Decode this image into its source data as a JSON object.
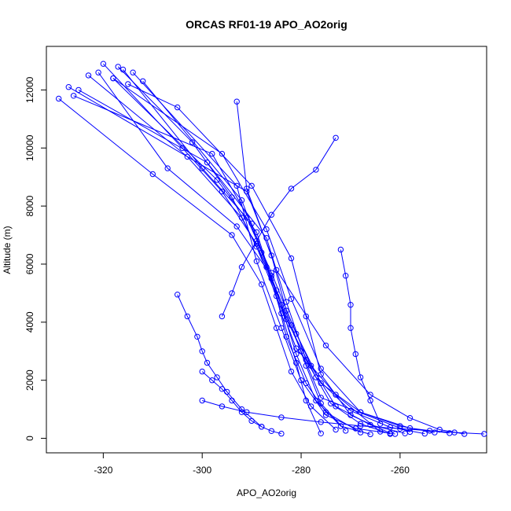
{
  "chart_data": {
    "type": "scatter",
    "title": "ORCAS RF01-19 APO_AO2orig",
    "xlabel": "APO_AO2orig",
    "ylabel": "Altitude (m)",
    "xlim": [
      -331.5,
      -242.5
    ],
    "ylim": [
      -500,
      13500
    ],
    "xticks": [
      -320,
      -300,
      -280,
      -260
    ],
    "yticks": [
      0,
      2000,
      4000,
      6000,
      8000,
      10000,
      12000
    ],
    "xtick_labels": [
      "-320",
      "-300",
      "-280",
      "-260"
    ],
    "ytick_labels": [
      "0",
      "2000",
      "4000",
      "6000",
      "8000",
      "10000",
      "12000"
    ],
    "grid": false,
    "legend": "none",
    "marker": "open-circle",
    "connected": true,
    "color": "#0000ff",
    "series": [
      {
        "profile": 1,
        "x": [
          -247,
          -252,
          -258,
          -266,
          -275,
          -285,
          -291,
          -293
        ],
        "y": [
          150,
          300,
          700,
          1500,
          3200,
          5800,
          8600,
          11600
        ]
      },
      {
        "profile": 2,
        "x": [
          -315,
          -305,
          -290,
          -282,
          -279,
          -276,
          -270,
          -262
        ],
        "y": [
          12200,
          11400,
          8700,
          6200,
          4200,
          2200,
          800,
          180
        ]
      },
      {
        "profile": 3,
        "x": [
          -250,
          -258,
          -268,
          -276,
          -282,
          -287,
          -296,
          -318
        ],
        "y": [
          180,
          350,
          900,
          2400,
          4800,
          7200,
          9800,
          12400
        ]
      },
      {
        "profile": 4,
        "x": [
          -321,
          -307,
          -293,
          -286,
          -283,
          -279,
          -275,
          -268
        ],
        "y": [
          12600,
          9300,
          7300,
          5600,
          3500,
          1900,
          900,
          200
        ]
      },
      {
        "profile": 5,
        "x": [
          -262,
          -268,
          -274,
          -279,
          -283,
          -287,
          -299,
          -325
        ],
        "y": [
          150,
          500,
          1200,
          2700,
          4700,
          6900,
          9500,
          12000
        ]
      },
      {
        "profile": 6,
        "x": [
          -329,
          -310,
          -294,
          -288,
          -285,
          -282,
          -278,
          -273
        ],
        "y": [
          11700,
          9100,
          7000,
          5300,
          3800,
          2300,
          1100,
          300
        ]
      },
      {
        "profile": 7,
        "x": [
          -255,
          -262,
          -270,
          -277,
          -283,
          -288,
          -292,
          -312
        ],
        "y": [
          160,
          380,
          950,
          2100,
          4100,
          6400,
          8200,
          12300
        ]
      },
      {
        "profile": 8,
        "x": [
          -320,
          -304,
          -296,
          -289,
          -284,
          -280,
          -276,
          -258
        ],
        "y": [
          12900,
          10000,
          8500,
          6700,
          4600,
          3000,
          1400,
          220
        ]
      },
      {
        "profile": 9,
        "x": [
          -266,
          -272,
          -277,
          -281,
          -285,
          -290,
          -298,
          -326
        ],
        "y": [
          140,
          420,
          1300,
          2900,
          5100,
          7400,
          9800,
          11800
        ]
      },
      {
        "profile": 10,
        "x": [
          -323,
          -303,
          -292,
          -287,
          -284,
          -281,
          -279,
          -276
        ],
        "y": [
          12500,
          9700,
          7600,
          5900,
          4300,
          2600,
          1300,
          170
        ]
      },
      {
        "profile": 11,
        "x": [
          -253,
          -260,
          -268,
          -276,
          -281,
          -286,
          -291,
          -300,
          -316
        ],
        "y": [
          200,
          420,
          900,
          1900,
          3600,
          5700,
          7600,
          9300,
          12700
        ]
      },
      {
        "profile": 12,
        "x": [
          -317,
          -302,
          -294,
          -289,
          -285,
          -281,
          -273,
          -264
        ],
        "y": [
          12800,
          10200,
          8300,
          6600,
          4900,
          3100,
          1500,
          230
        ]
      },
      {
        "profile": 13,
        "x": [
          -259,
          -266,
          -273,
          -278,
          -283,
          -286,
          -291,
          -327
        ],
        "y": [
          170,
          460,
          1100,
          2500,
          4400,
          6300,
          8500,
          12100
        ]
      },
      {
        "profile": 14,
        "x": [
          -318,
          -297,
          -289,
          -286,
          -282,
          -279,
          -276,
          -271
        ],
        "y": [
          12400,
          8900,
          7100,
          5500,
          3900,
          2500,
          1200,
          260
        ]
      },
      {
        "profile": 15,
        "x": [
          -261,
          -269,
          -275,
          -280,
          -284,
          -289,
          -293,
          -314
        ],
        "y": [
          150,
          340,
          800,
          2000,
          3800,
          6100,
          8700,
          12600
        ]
      },
      {
        "profile": 16,
        "x": [
          -300,
          -298,
          -296,
          -294,
          -292,
          -290,
          -288,
          -286,
          -284
        ],
        "y": [
          2300,
          2000,
          1700,
          1300,
          900,
          600,
          400,
          250,
          160
        ]
      },
      {
        "profile": 17,
        "x": [
          -272,
          -271,
          -270,
          -270,
          -269,
          -268,
          -266,
          -264
        ],
        "y": [
          6500,
          5600,
          4600,
          3800,
          2900,
          2100,
          1300,
          500
        ]
      },
      {
        "profile": 18,
        "x": [
          -305,
          -303,
          -301,
          -300,
          -299,
          -297,
          -295,
          -292,
          -288
        ],
        "y": [
          4950,
          4200,
          3500,
          3000,
          2600,
          2100,
          1600,
          1000,
          400
        ]
      },
      {
        "profile": 19,
        "x": [
          -273,
          -277,
          -282,
          -286,
          -289,
          -292,
          -294,
          -296
        ],
        "y": [
          10350,
          9250,
          8600,
          7700,
          6800,
          5900,
          5000,
          4200
        ]
      },
      {
        "profile": 20,
        "x": [
          -243,
          -249,
          -254,
          -260,
          -268,
          -276,
          -284,
          -291,
          -296,
          -300
        ],
        "y": [
          150,
          200,
          260,
          330,
          430,
          560,
          720,
          900,
          1100,
          1300
        ]
      }
    ]
  }
}
